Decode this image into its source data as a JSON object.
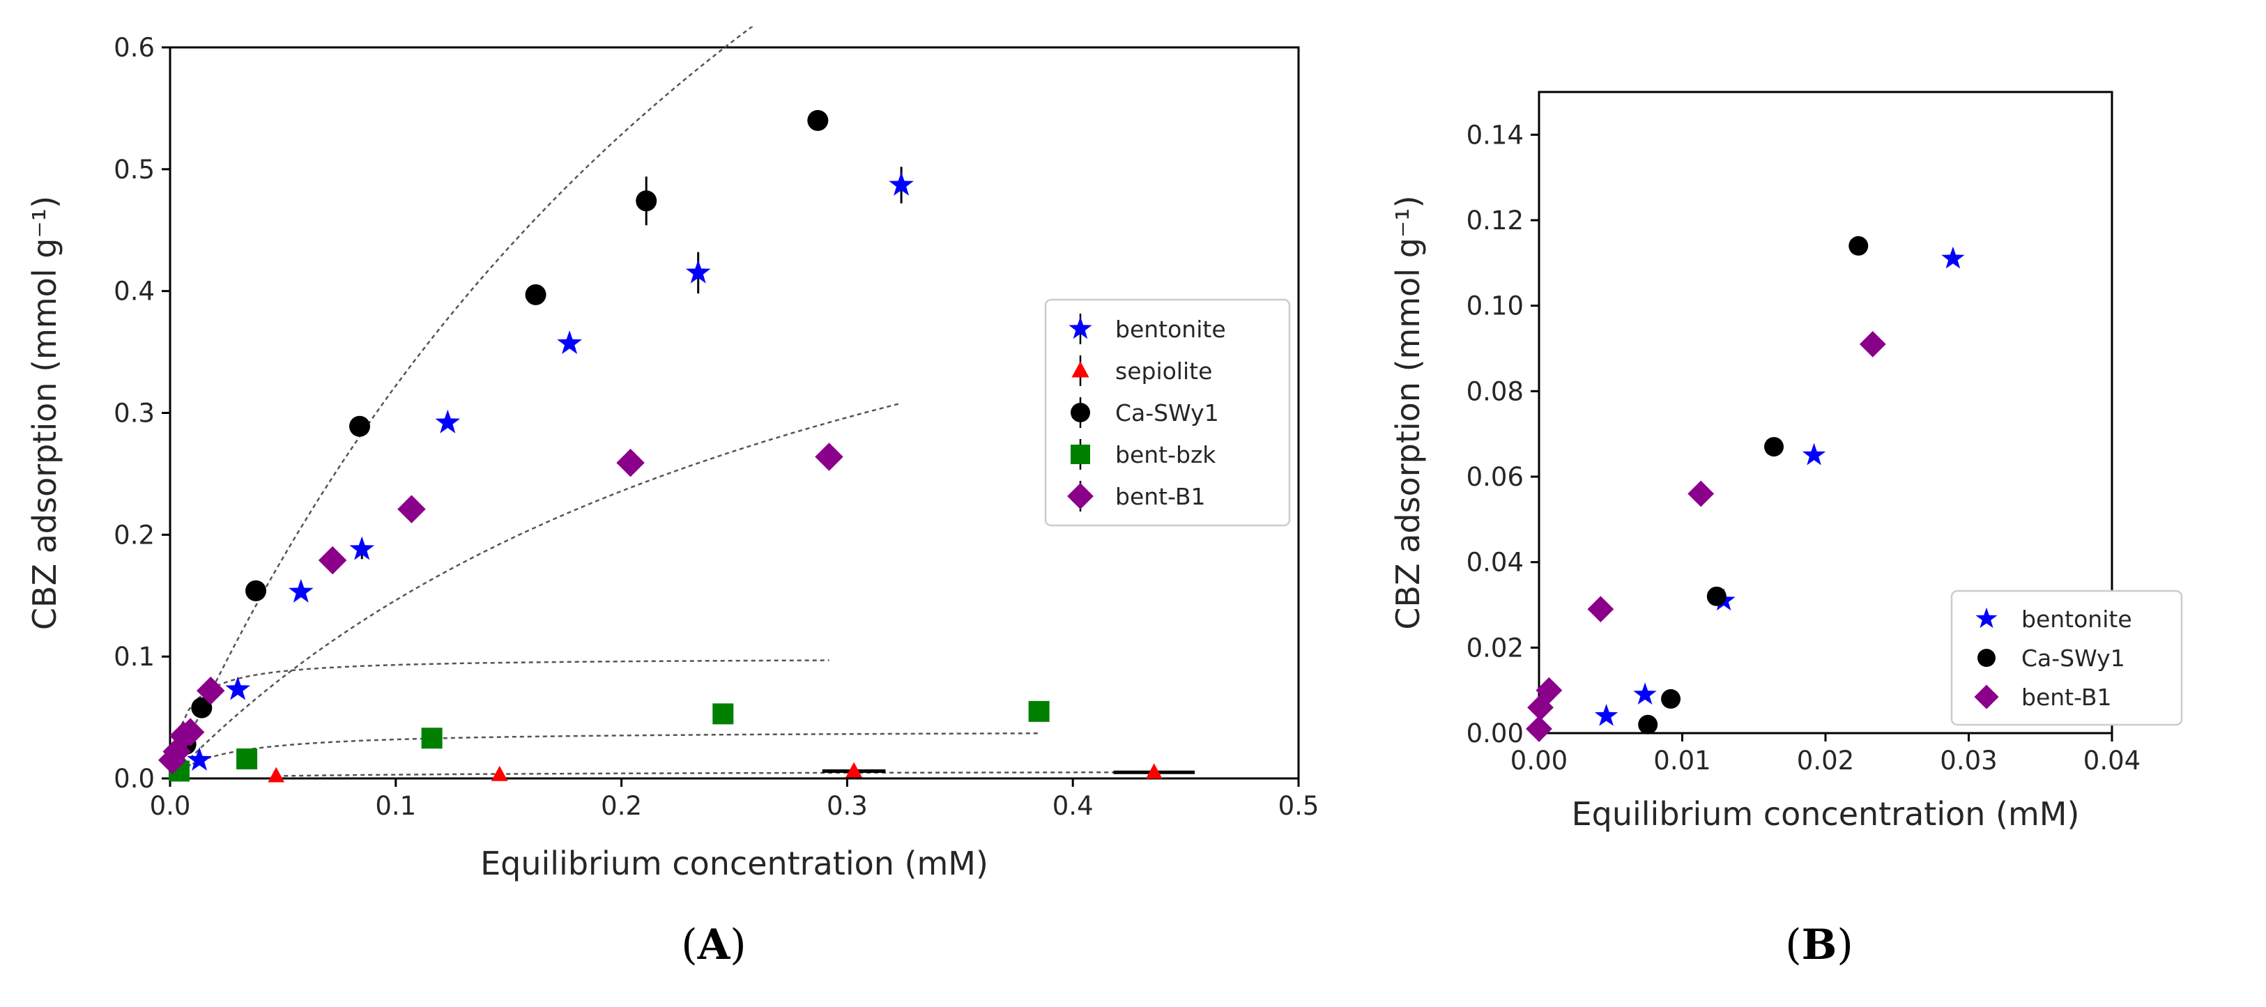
{
  "chart_data": [
    {
      "panel": "A",
      "type": "scatter",
      "title": "",
      "xlabel": "Equilibrium concentration (mM)",
      "ylabel": "CBZ adsorption (mmol g⁻¹)",
      "xlim": [
        0,
        0.5
      ],
      "ylim": [
        0,
        0.6
      ],
      "xticks": [
        0,
        0.1,
        0.2,
        0.3,
        0.4,
        0.5
      ],
      "xtick_labels": [
        "0.0",
        "0.1",
        "0.2",
        "0.3",
        "0.4",
        "0.5"
      ],
      "yticks": [
        0,
        0.1,
        0.2,
        0.3,
        0.4,
        0.5,
        0.6
      ],
      "ytick_labels": [
        "0.0",
        "0.1",
        "0.2",
        "0.3",
        "0.4",
        "0.5",
        "0.6"
      ],
      "grid": false,
      "legend_position": "center-right",
      "fitted_curves": "dashed",
      "series": [
        {
          "name": "bentonite",
          "marker": "star",
          "color": "#0000ff",
          "fit": true,
          "x": [
            0.004,
            0.013,
            0.03,
            0.058,
            0.085,
            0.123,
            0.177,
            0.234,
            0.324
          ],
          "y": [
            0.008,
            0.015,
            0.073,
            0.153,
            0.188,
            0.292,
            0.357,
            0.415,
            0.487
          ],
          "yerr": [
            0,
            0,
            0,
            0,
            0.008,
            0,
            0,
            0.017,
            0.015
          ]
        },
        {
          "name": "sepiolite",
          "marker": "triangle",
          "color": "#ff0000",
          "fit": true,
          "x": [
            0.047,
            0.146,
            0.303,
            0.436
          ],
          "y": [
            0.002,
            0.003,
            0.006,
            0.005
          ],
          "xerr": [
            0,
            0,
            0.014,
            0.018
          ]
        },
        {
          "name": "Ca-SWy1",
          "marker": "circle",
          "color": "#000000",
          "fit": true,
          "x": [
            0.007,
            0.014,
            0.038,
            0.084,
            0.162,
            0.211,
            0.287
          ],
          "y": [
            0.028,
            0.058,
            0.154,
            0.289,
            0.397,
            0.474,
            0.54
          ],
          "yerr": [
            0,
            0,
            0,
            0,
            0,
            0.02,
            0
          ]
        },
        {
          "name": "bent-bzk",
          "marker": "square",
          "color": "#008000",
          "fit": true,
          "x": [
            0.004,
            0.034,
            0.116,
            0.245,
            0.385
          ],
          "y": [
            0.006,
            0.016,
            0.033,
            0.053,
            0.055
          ]
        },
        {
          "name": "bent-B1",
          "marker": "diamond",
          "color": "#8b008b",
          "fit": true,
          "x": [
            0.001,
            0.003,
            0.006,
            0.009,
            0.018,
            0.072,
            0.107,
            0.204,
            0.292
          ],
          "y": [
            0.015,
            0.022,
            0.035,
            0.038,
            0.072,
            0.179,
            0.221,
            0.259,
            0.264
          ]
        }
      ]
    },
    {
      "panel": "B",
      "type": "scatter",
      "title": "",
      "xlabel": "Equilibrium concentration (mM)",
      "ylabel": "CBZ adsorption (mmol g⁻¹)",
      "xlim": [
        0,
        0.04
      ],
      "ylim": [
        0,
        0.15
      ],
      "xticks": [
        0,
        0.01,
        0.02,
        0.03,
        0.04
      ],
      "xtick_labels": [
        "0.00",
        "0.01",
        "0.02",
        "0.03",
        "0.04"
      ],
      "yticks": [
        0,
        0.02,
        0.04,
        0.06,
        0.08,
        0.1,
        0.12,
        0.14
      ],
      "ytick_labels": [
        "0.00",
        "0.02",
        "0.04",
        "0.06",
        "0.08",
        "0.10",
        "0.12",
        "0.14"
      ],
      "grid": false,
      "legend_position": "lower-right",
      "series": [
        {
          "name": "bentonite",
          "marker": "star",
          "color": "#0000ff",
          "x": [
            0.0047,
            0.0074,
            0.0129,
            0.0192,
            0.0289
          ],
          "y": [
            0.004,
            0.009,
            0.031,
            0.065,
            0.111
          ]
        },
        {
          "name": "Ca-SWy1",
          "marker": "circle",
          "color": "#000000",
          "x": [
            0.0076,
            0.0092,
            0.0124,
            0.0164,
            0.0223
          ],
          "y": [
            0.002,
            0.008,
            0.032,
            0.067,
            0.114
          ]
        },
        {
          "name": "bent-B1",
          "marker": "diamond",
          "color": "#8b008b",
          "x": [
            0.0,
            0.0001,
            0.0007,
            0.0043,
            0.0113,
            0.0233
          ],
          "y": [
            0.001,
            0.006,
            0.01,
            0.029,
            0.056,
            0.091
          ]
        }
      ]
    }
  ],
  "panel_labels": [
    "A",
    "B"
  ]
}
